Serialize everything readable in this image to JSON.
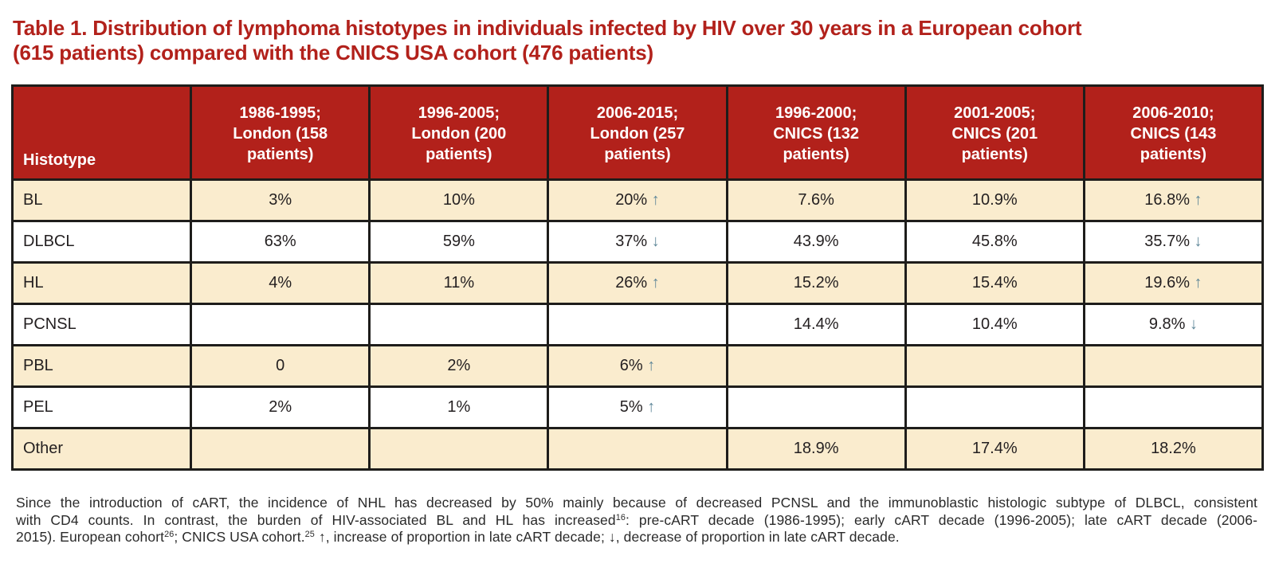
{
  "title": {
    "line1": "Table 1. Distribution of lymphoma histotypes in individuals infected by HIV over 30 years in a European cohort",
    "line2": "(615 patients) compared with the CNICS USA cohort (476 patients)"
  },
  "colors": {
    "header_red": "#b2211b",
    "title_red": "#b2211b",
    "row_cream": "#faecce",
    "row_white": "#ffffff",
    "border_dark": "#1e1d1b",
    "arrow_teal": "#5f8799"
  },
  "icons": {
    "up": "↑",
    "down": "↓"
  },
  "table": {
    "columns": [
      "Histotype",
      "1986-1995; London (158 patients)",
      "1996-2005; London (200 patients)",
      "2006-2015; London (257 patients)",
      "1996-2000; CNICS (132 patients)",
      "2001-2005; CNICS (201 patients)",
      "2006-2010; CNICS (143 patients)"
    ],
    "rows": [
      {
        "histotype": "BL",
        "values": [
          {
            "v": "3%"
          },
          {
            "v": "10%"
          },
          {
            "v": "20%",
            "arrow": "up"
          },
          {
            "v": "7.6%"
          },
          {
            "v": "10.9%"
          },
          {
            "v": "16.8%",
            "arrow": "up"
          }
        ]
      },
      {
        "histotype": "DLBCL",
        "values": [
          {
            "v": "63%"
          },
          {
            "v": "59%"
          },
          {
            "v": "37%",
            "arrow": "down"
          },
          {
            "v": "43.9%"
          },
          {
            "v": "45.8%"
          },
          {
            "v": "35.7%",
            "arrow": "down"
          }
        ]
      },
      {
        "histotype": "HL",
        "values": [
          {
            "v": "4%"
          },
          {
            "v": "11%"
          },
          {
            "v": "26%",
            "arrow": "up"
          },
          {
            "v": "15.2%"
          },
          {
            "v": "15.4%"
          },
          {
            "v": "19.6%",
            "arrow": "up"
          }
        ]
      },
      {
        "histotype": "PCNSL",
        "values": [
          {
            "v": ""
          },
          {
            "v": ""
          },
          {
            "v": ""
          },
          {
            "v": "14.4%"
          },
          {
            "v": "10.4%"
          },
          {
            "v": "9.8%",
            "arrow": "down"
          }
        ]
      },
      {
        "histotype": "PBL",
        "values": [
          {
            "v": "0"
          },
          {
            "v": "2%"
          },
          {
            "v": "6%",
            "arrow": "up"
          },
          {
            "v": ""
          },
          {
            "v": ""
          },
          {
            "v": ""
          }
        ]
      },
      {
        "histotype": "PEL",
        "values": [
          {
            "v": "2%"
          },
          {
            "v": "1%"
          },
          {
            "v": "5%",
            "arrow": "up"
          },
          {
            "v": ""
          },
          {
            "v": ""
          },
          {
            "v": ""
          }
        ]
      },
      {
        "histotype": "Other",
        "values": [
          {
            "v": ""
          },
          {
            "v": ""
          },
          {
            "v": ""
          },
          {
            "v": "18.9%"
          },
          {
            "v": "17.4%"
          },
          {
            "v": "18.2%"
          }
        ]
      }
    ]
  },
  "footnote": {
    "lines": [
      {
        "justify": true,
        "segments": [
          {
            "t": "Since the introduction of cART, the incidence of NHL has decreased by 50% mainly because of decreased PCNSL and the immunoblastic histologic subtype of DLBCL, consistent"
          }
        ]
      },
      {
        "justify": true,
        "segments": [
          {
            "t": "with CD4 counts. In contrast, the burden of HIV-associated BL and HL has increased"
          },
          {
            "sup": "16"
          },
          {
            "t": ": pre-cART decade (1986-1995); early cART decade (1996-2005); late cART decade (2006-"
          }
        ]
      },
      {
        "justify": false,
        "segments": [
          {
            "t": "2015). European cohort"
          },
          {
            "sup": "26"
          },
          {
            "t": "; CNICS USA cohort."
          },
          {
            "sup": "25"
          },
          {
            "t": " ↑, increase of proportion in late cART decade; ↓, decrease of proportion in late cART decade."
          }
        ]
      }
    ]
  }
}
